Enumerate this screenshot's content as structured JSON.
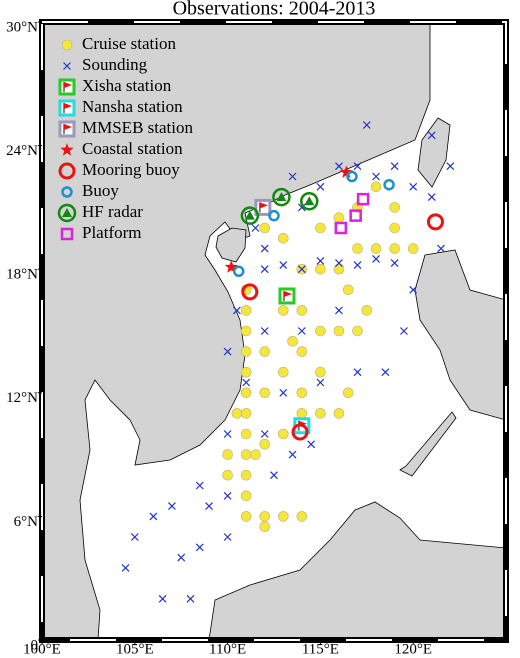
{
  "title": "Observations: 2004-2013",
  "lon_range": [
    100,
    125
  ],
  "lat_range": [
    0,
    30
  ],
  "lon_ticks": [
    {
      "value": 100,
      "label": "100°E"
    },
    {
      "value": 105,
      "label": "105°E"
    },
    {
      "value": 110,
      "label": "110°E"
    },
    {
      "value": 115,
      "label": "115°E"
    },
    {
      "value": 120,
      "label": "120°E"
    }
  ],
  "lat_ticks": [
    {
      "value": 0,
      "label": "0"
    },
    {
      "value": 6,
      "label": "6°N"
    },
    {
      "value": 12,
      "label": "12°N"
    },
    {
      "value": 18,
      "label": "18°N"
    },
    {
      "value": 24,
      "label": "24°N"
    },
    {
      "value": 30,
      "label": "30°N"
    }
  ],
  "observations": [
    {
      "label": "Cruise station",
      "marker": "dot",
      "color": "#f5e63c",
      "locations": [
        [
          111,
          17
        ],
        [
          111,
          16
        ],
        [
          111,
          15
        ],
        [
          111,
          14
        ],
        [
          111,
          13
        ],
        [
          111,
          12
        ],
        [
          111,
          11
        ],
        [
          111,
          10
        ],
        [
          111,
          9
        ],
        [
          111,
          8
        ],
        [
          111,
          7
        ],
        [
          111,
          6
        ],
        [
          112,
          6
        ],
        [
          113,
          6
        ],
        [
          114,
          6
        ],
        [
          112,
          5.5
        ],
        [
          111.5,
          9
        ],
        [
          112,
          9.5
        ],
        [
          113,
          10
        ],
        [
          114,
          11
        ],
        [
          115,
          11
        ],
        [
          116,
          11
        ],
        [
          116.5,
          12
        ],
        [
          115,
          13
        ],
        [
          114,
          14
        ],
        [
          115,
          15
        ],
        [
          116,
          15
        ],
        [
          117,
          15
        ],
        [
          117.5,
          16
        ],
        [
          116.5,
          17
        ],
        [
          114,
          18
        ],
        [
          115,
          18
        ],
        [
          116,
          18
        ],
        [
          117,
          19
        ],
        [
          118,
          19
        ],
        [
          119,
          19
        ],
        [
          120,
          19
        ],
        [
          119,
          20
        ],
        [
          119,
          21
        ],
        [
          118,
          22
        ],
        [
          117,
          21
        ],
        [
          116,
          20.5
        ],
        [
          115,
          20
        ],
        [
          113,
          19.5
        ],
        [
          112,
          20
        ],
        [
          113,
          16
        ],
        [
          114,
          16
        ],
        [
          112,
          14
        ],
        [
          113,
          13
        ],
        [
          114,
          12
        ],
        [
          110.5,
          11
        ],
        [
          110,
          9
        ],
        [
          110,
          8
        ],
        [
          112,
          12
        ],
        [
          113.5,
          14.5
        ]
      ]
    },
    {
      "label": "Sounding",
      "marker": "cross",
      "color": "#2233cc",
      "locations": [
        [
          112,
          18
        ],
        [
          113,
          18.2
        ],
        [
          114,
          18
        ],
        [
          115,
          18.4
        ],
        [
          116,
          18.3
        ],
        [
          117,
          18.2
        ],
        [
          118,
          18.5
        ],
        [
          119,
          18.3
        ],
        [
          112,
          19
        ],
        [
          111.5,
          20
        ],
        [
          114,
          21
        ],
        [
          115,
          22
        ],
        [
          116,
          23
        ],
        [
          117,
          23
        ],
        [
          118,
          22.5
        ],
        [
          119,
          23
        ],
        [
          120,
          22
        ],
        [
          121,
          21.5
        ],
        [
          121.5,
          19
        ],
        [
          120,
          17
        ],
        [
          116,
          16
        ],
        [
          114,
          15
        ],
        [
          112,
          15
        ],
        [
          110.5,
          16
        ],
        [
          110,
          14
        ],
        [
          111,
          12.5
        ],
        [
          113,
          12
        ],
        [
          115,
          12.5
        ],
        [
          117,
          13
        ],
        [
          113.5,
          9
        ],
        [
          112.5,
          8
        ],
        [
          110,
          7
        ],
        [
          108.5,
          7.5
        ],
        [
          107,
          6.5
        ],
        [
          106,
          6
        ],
        [
          105,
          5
        ],
        [
          107.5,
          4
        ],
        [
          106.5,
          2
        ],
        [
          108,
          2
        ],
        [
          104.5,
          3.5
        ],
        [
          110,
          5
        ],
        [
          109,
          6.5
        ],
        [
          112,
          10
        ],
        [
          114.5,
          9.5
        ],
        [
          118.5,
          13
        ],
        [
          119.5,
          15
        ],
        [
          122,
          23
        ],
        [
          121,
          24.5
        ],
        [
          117.5,
          25
        ],
        [
          113.5,
          22.5
        ],
        [
          110,
          10
        ],
        [
          108.5,
          4.5
        ]
      ]
    },
    {
      "label": "Xisha station",
      "marker": "flag",
      "color": "#22cc22",
      "locations": [
        [
          113.2,
          16.7
        ]
      ]
    },
    {
      "label": "Nansha station",
      "marker": "flag",
      "color": "#22dddd",
      "locations": [
        [
          114.0,
          10.4
        ]
      ]
    },
    {
      "label": "MMSEB station",
      "marker": "flag",
      "color": "#9999bb",
      "locations": [
        [
          111.9,
          21.0
        ]
      ]
    },
    {
      "label": "Coastal station",
      "marker": "star",
      "color": "#ee1111",
      "locations": [
        [
          116.4,
          22.7
        ],
        [
          110.2,
          18.1
        ]
      ]
    },
    {
      "label": "Mooring buoy",
      "marker": "ring",
      "color": "#ee1111",
      "locations": [
        [
          121.2,
          20.3
        ],
        [
          111.2,
          16.9
        ],
        [
          113.9,
          10.1
        ]
      ]
    },
    {
      "label": "Buoy",
      "marker": "small-ring",
      "color": "#1e90cc",
      "locations": [
        [
          116.7,
          22.5
        ],
        [
          118.7,
          22.1
        ],
        [
          112.5,
          20.6
        ],
        [
          110.6,
          17.9
        ]
      ]
    },
    {
      "label": "HF radar",
      "marker": "triangle",
      "color": "#118811",
      "locations": [
        [
          111.2,
          20.6
        ],
        [
          112.9,
          21.5
        ],
        [
          114.4,
          21.3
        ]
      ]
    },
    {
      "label": "Platform",
      "marker": "square",
      "color": "#dd22dd",
      "locations": [
        [
          117.3,
          21.4
        ],
        [
          116.9,
          20.6
        ],
        [
          116.1,
          20.0
        ]
      ]
    }
  ]
}
